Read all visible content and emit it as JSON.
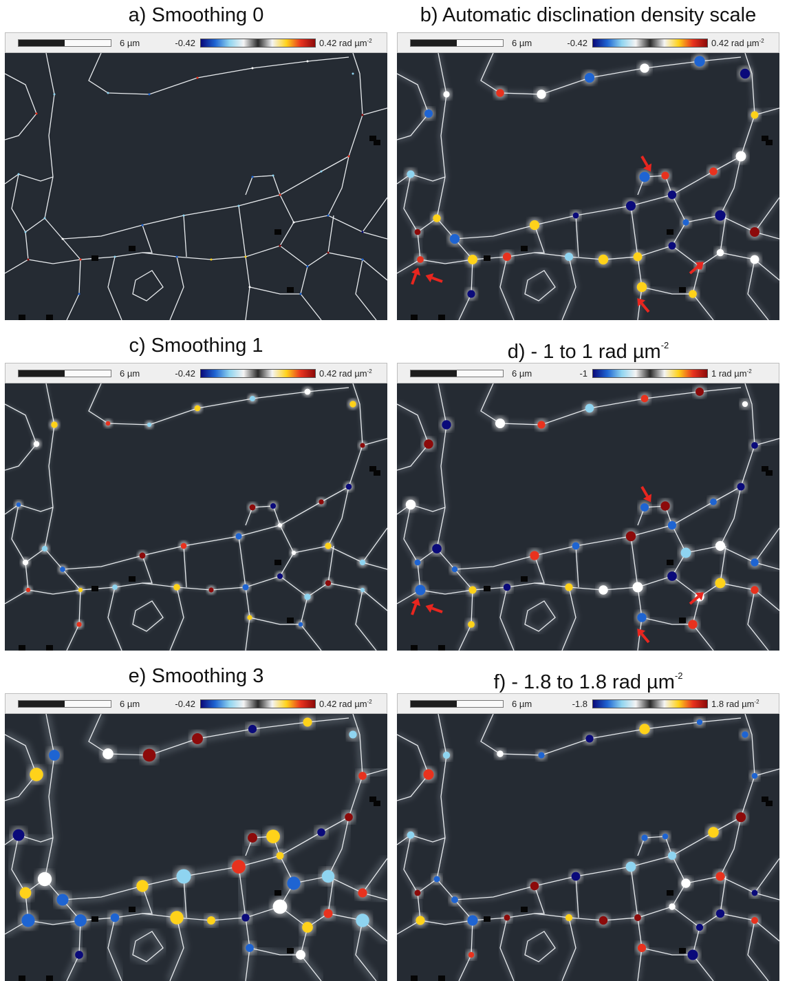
{
  "colors": {
    "background": "#252b33",
    "boundary": "#e9ecef",
    "cmap": [
      "#0a0a7a",
      "#1e64d2",
      "#8fd4f0",
      "#f4f4f4",
      "#2a2a2a",
      "#f4f4f4",
      "#ffd21a",
      "#e8321e",
      "#8c0a0a"
    ],
    "arrow": "#e8261f"
  },
  "panels": [
    {
      "title": "a) Smoothing 0",
      "scale_label": "6 µm",
      "range_min": "-0.42",
      "range_max": "0.42 rad µm",
      "range_max_exp": "-2",
      "smoothing": 0,
      "arrows": false
    },
    {
      "title": "b) Automatic disclination density scale",
      "scale_label": "6 µm",
      "range_min": "-0.42",
      "range_max": "0.42 rad µm",
      "range_max_exp": "-2",
      "smoothing": 2,
      "arrows": true
    },
    {
      "title": "c) Smoothing 1",
      "scale_label": "6 µm",
      "range_min": "-0.42",
      "range_max": "0.42 rad µm",
      "range_max_exp": "-2",
      "smoothing": 1,
      "arrows": false
    },
    {
      "title": "d) - 1 to 1 rad µm",
      "title_exp": "-2",
      "scale_label": "6 µm",
      "range_min": "-1",
      "range_max": "1 rad µm",
      "range_max_exp": "-2",
      "smoothing": 2,
      "arrows": true
    },
    {
      "title": "e) Smoothing 3",
      "scale_label": "6 µm",
      "range_min": "-0.42",
      "range_max": "0.42 rad µm",
      "range_max_exp": "-2",
      "smoothing": 3,
      "arrows": false
    },
    {
      "title": "f) - 1.8 to 1.8 rad µm",
      "title_exp": "-2",
      "scale_label": "6 µm",
      "range_min": "-1.8",
      "range_max": "1.8 rad µm",
      "range_max_exp": "-2",
      "smoothing": 2,
      "arrows": false
    }
  ]
}
